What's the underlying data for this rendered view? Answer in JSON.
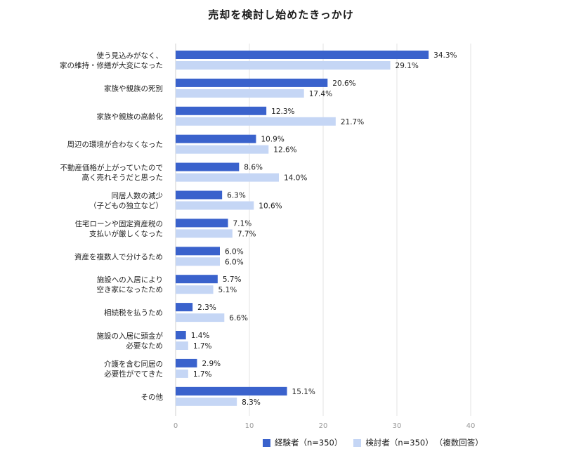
{
  "chart_data": {
    "type": "bar",
    "orientation": "horizontal",
    "title": "売却を検討し始めたきっかけ",
    "categories": [
      [
        "使う見込みがなく、",
        "家の維持・修繕が大変になった"
      ],
      [
        "家族や親族の死別"
      ],
      [
        "家族や親族の高齢化"
      ],
      [
        "周辺の環境が合わなくなった"
      ],
      [
        "不動産価格が上がっていたので",
        "高く売れそうだと思った"
      ],
      [
        "同居人数の減少",
        "（子どもの独立など）"
      ],
      [
        "住宅ローンや固定資産税の",
        "支払いが厳しくなった"
      ],
      [
        "資産を複数人で分けるため"
      ],
      [
        "施設への入居により",
        "空き家になったため"
      ],
      [
        "相続税を払うため"
      ],
      [
        "施設の入居に頭金が",
        "必要なため"
      ],
      [
        "介護を含む同居の",
        "必要性がでてきた"
      ],
      [
        "その他"
      ]
    ],
    "series": [
      {
        "name": "経験者（n=350）",
        "color": "#3a62cc",
        "values": [
          34.3,
          20.6,
          12.3,
          10.9,
          8.6,
          6.3,
          7.1,
          6.0,
          5.7,
          2.3,
          1.4,
          2.9,
          15.1
        ]
      },
      {
        "name": "検討者（n=350）",
        "color": "#c5d6f5",
        "values": [
          29.1,
          17.4,
          21.7,
          12.6,
          14.0,
          10.6,
          7.7,
          6.0,
          5.1,
          6.6,
          1.7,
          1.7,
          8.3
        ]
      }
    ],
    "value_suffix": "%",
    "xlim": [
      0,
      40
    ],
    "xticks": [
      0,
      10,
      20,
      30,
      40
    ],
    "grid": true,
    "legend_position": "bottom",
    "legend_note": "（複数回答）"
  }
}
